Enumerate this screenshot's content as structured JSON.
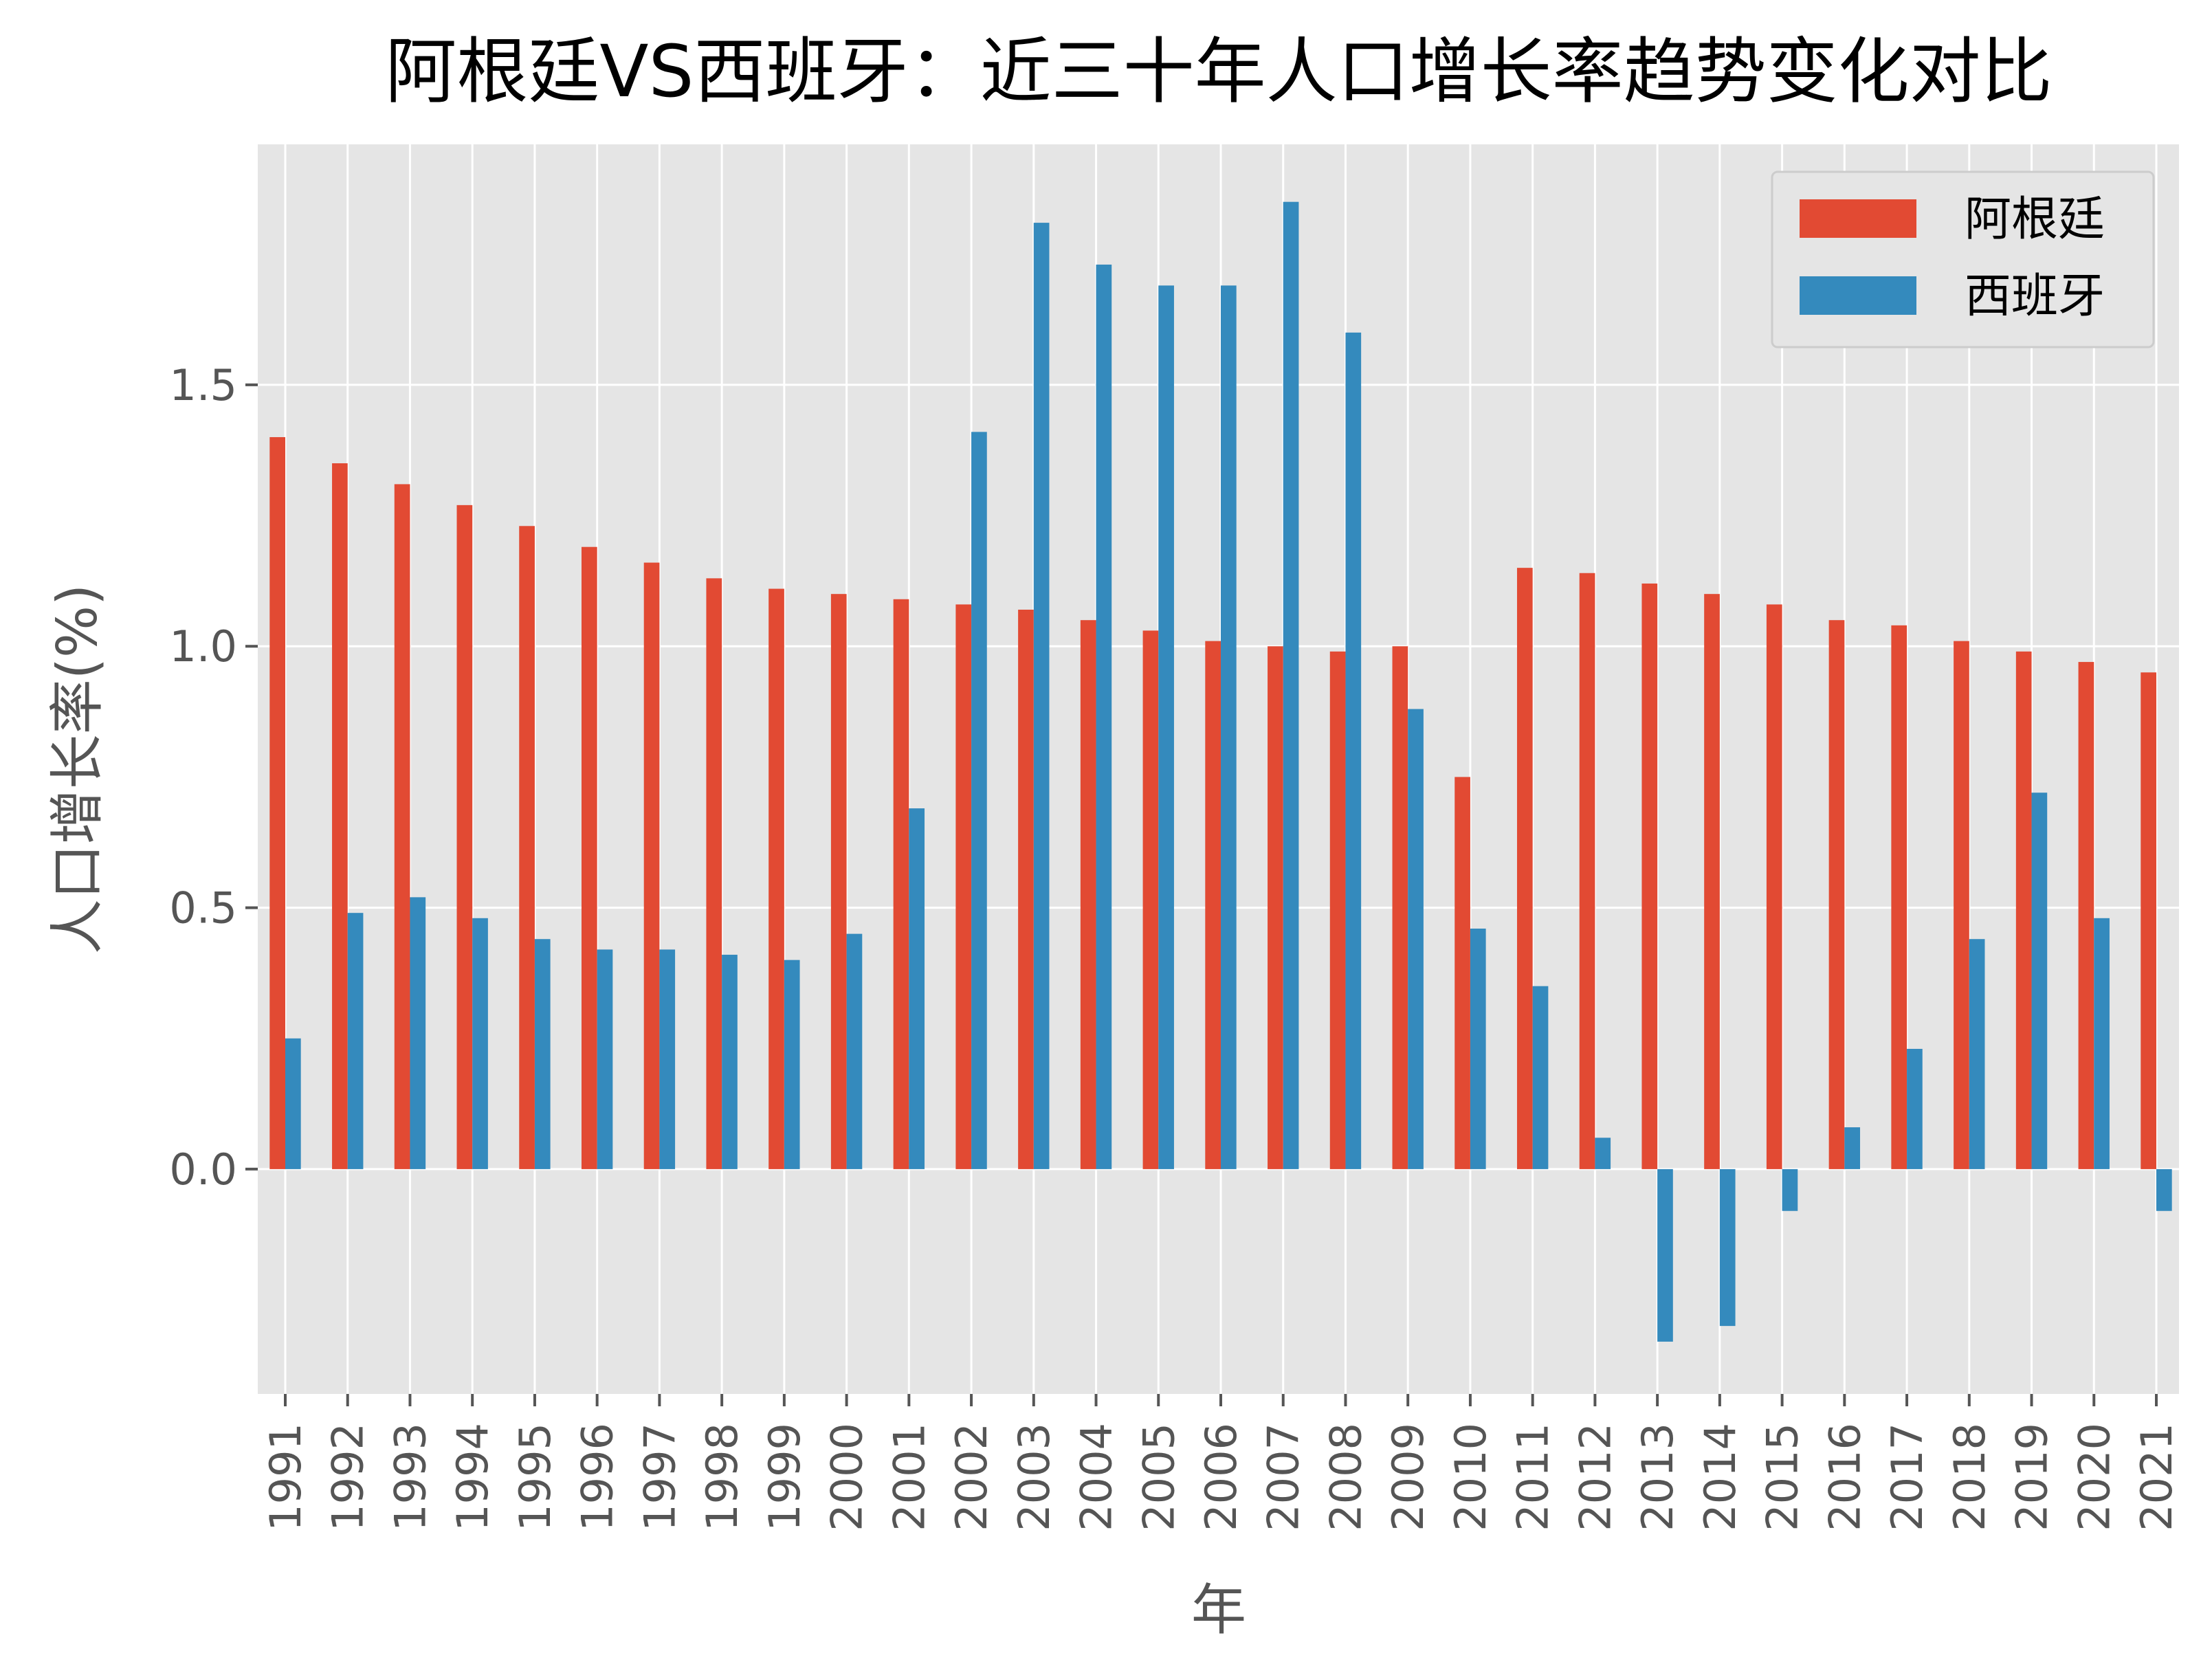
{
  "chart_data": {
    "type": "bar",
    "title": "阿根廷VS西班牙：近三十年人口增长率趋势变化对比",
    "xlabel": "年",
    "ylabel": "人口增长率(%)",
    "ylim": [
      -0.43,
      1.96
    ],
    "yticks": [
      0.0,
      0.5,
      1.0,
      1.5
    ],
    "ytick_labels": [
      "0.0",
      "0.5",
      "1.0",
      "1.5"
    ],
    "grid": true,
    "legend_position": "top-right",
    "categories": [
      "1991",
      "1992",
      "1993",
      "1994",
      "1995",
      "1996",
      "1997",
      "1998",
      "1999",
      "2000",
      "2001",
      "2002",
      "2003",
      "2004",
      "2005",
      "2006",
      "2007",
      "2008",
      "2009",
      "2010",
      "2011",
      "2012",
      "2013",
      "2014",
      "2015",
      "2016",
      "2017",
      "2018",
      "2019",
      "2020",
      "2021"
    ],
    "series": [
      {
        "name": "阿根廷",
        "color": "#E24A33",
        "values": [
          1.4,
          1.35,
          1.31,
          1.27,
          1.23,
          1.19,
          1.16,
          1.13,
          1.11,
          1.1,
          1.09,
          1.08,
          1.07,
          1.05,
          1.03,
          1.01,
          1.0,
          0.99,
          1.0,
          0.75,
          1.15,
          1.14,
          1.12,
          1.1,
          1.08,
          1.05,
          1.04,
          1.01,
          0.99,
          0.97,
          0.95
        ]
      },
      {
        "name": "西班牙",
        "color": "#348ABD",
        "values": [
          0.25,
          0.49,
          0.52,
          0.48,
          0.44,
          0.42,
          0.42,
          0.41,
          0.4,
          0.45,
          0.69,
          1.41,
          1.81,
          1.73,
          1.69,
          1.69,
          1.85,
          1.6,
          0.88,
          0.46,
          0.35,
          0.06,
          -0.33,
          -0.3,
          -0.08,
          0.08,
          0.23,
          0.44,
          0.72,
          0.48,
          -0.08
        ]
      }
    ]
  },
  "style": {
    "plot_bg": "#E5E5E5",
    "grid_color": "#FFFFFF",
    "tick_color": "#555555",
    "label_color": "#555555",
    "title_color": "#000000"
  }
}
